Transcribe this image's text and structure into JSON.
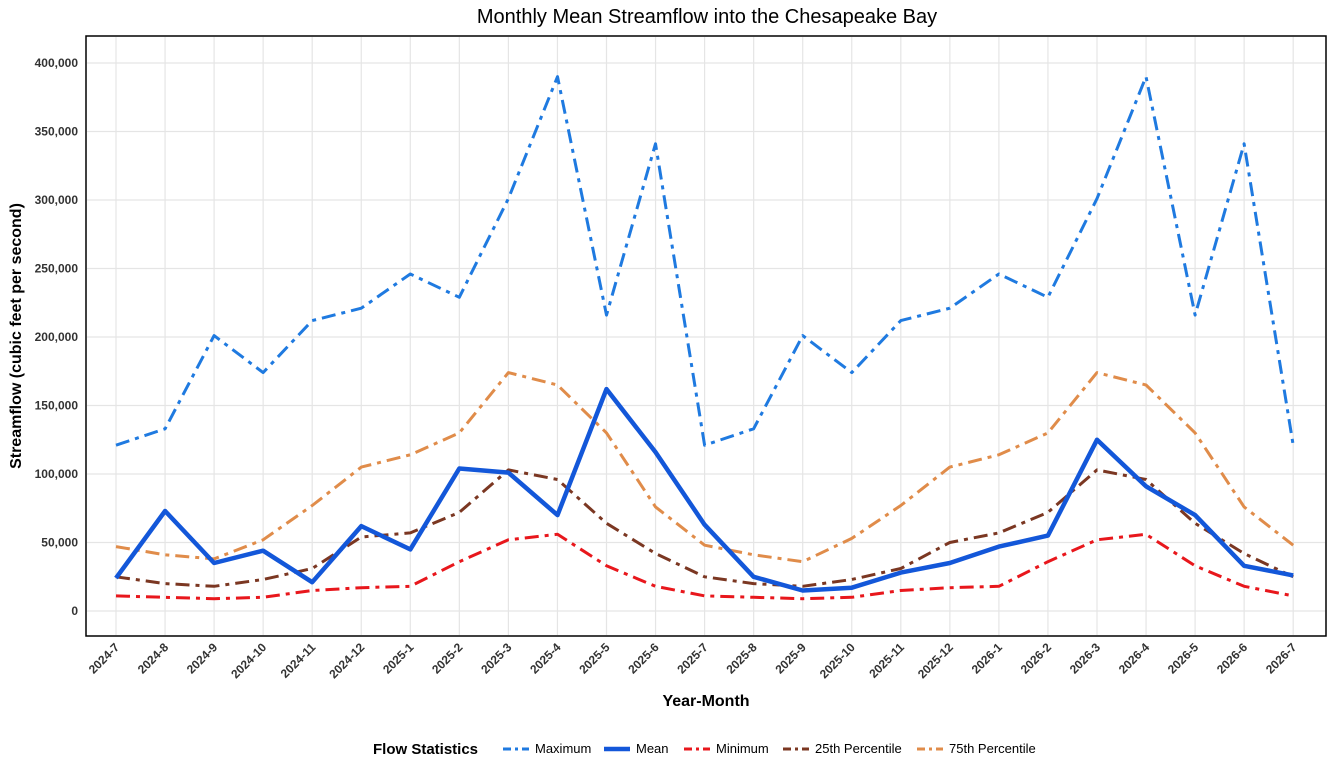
{
  "chart_data": {
    "type": "line",
    "title": "Monthly Mean Streamflow into the Chesapeake Bay",
    "xlabel": "Year-Month",
    "ylabel": "Streamflow (cubic feet per second)",
    "ylim": [
      0,
      400000
    ],
    "yticks": [
      0,
      50000,
      100000,
      150000,
      200000,
      250000,
      300000,
      350000,
      400000
    ],
    "ytick_labels": [
      "0",
      "50,000",
      "100,000",
      "150,000",
      "200,000",
      "250,000",
      "300,000",
      "350,000",
      "400,000"
    ],
    "grid": true,
    "legend_title": "Flow Statistics",
    "legend_position": "bottom",
    "categories": [
      "2024-7",
      "2024-8",
      "2024-9",
      "2024-10",
      "2024-11",
      "2024-12",
      "2025-1",
      "2025-2",
      "2025-3",
      "2025-4",
      "2025-5",
      "2025-6",
      "2025-7",
      "2025-8",
      "2025-9",
      "2025-10",
      "2025-11",
      "2025-12",
      "2026-1",
      "2026-2",
      "2026-3",
      "2026-4",
      "2026-5",
      "2026-6",
      "2026-7"
    ],
    "series": [
      {
        "name": "Maximum",
        "color": "#1f7ae0",
        "style": "dashdot",
        "width": 3,
        "values": [
          121000,
          133000,
          201000,
          174000,
          212000,
          221000,
          246000,
          229000,
          301000,
          390000,
          216000,
          341000,
          121000,
          133000,
          201000,
          174000,
          212000,
          221000,
          246000,
          229000,
          301000,
          390000,
          216000,
          341000,
          121000
        ]
      },
      {
        "name": "Mean",
        "color": "#1357d9",
        "style": "solid",
        "width": 4.5,
        "values": [
          24000,
          73000,
          35000,
          44000,
          21000,
          62000,
          45000,
          104000,
          101000,
          70000,
          162000,
          116000,
          63000,
          25000,
          15000,
          17000,
          28000,
          35000,
          47000,
          55000,
          125000,
          91000,
          70000,
          33000,
          26000
        ]
      },
      {
        "name": "Minimum",
        "color": "#e8171c",
        "style": "dashdot",
        "width": 3,
        "values": [
          11000,
          10000,
          9000,
          10000,
          15000,
          17000,
          18000,
          36000,
          52000,
          56000,
          33000,
          18000,
          11000,
          10000,
          9000,
          10000,
          15000,
          17000,
          18000,
          36000,
          52000,
          56000,
          33000,
          18000,
          11000
        ]
      },
      {
        "name": "25th Percentile",
        "color": "#7b3722",
        "style": "dashdot",
        "width": 3,
        "values": [
          25000,
          20000,
          18000,
          23000,
          31000,
          54000,
          57000,
          72000,
          103000,
          96000,
          64000,
          42000,
          25000,
          20000,
          18000,
          23000,
          31000,
          50000,
          57000,
          72000,
          103000,
          96000,
          64000,
          42000,
          25000
        ]
      },
      {
        "name": "75th Percentile",
        "color": "#e08c4a",
        "style": "dashdot",
        "width": 3,
        "values": [
          47000,
          41000,
          38000,
          52000,
          77000,
          105000,
          114000,
          130000,
          174000,
          165000,
          130000,
          76000,
          48000,
          41000,
          36000,
          53000,
          77000,
          105000,
          114000,
          130000,
          174000,
          165000,
          130000,
          76000,
          48000
        ]
      }
    ]
  }
}
